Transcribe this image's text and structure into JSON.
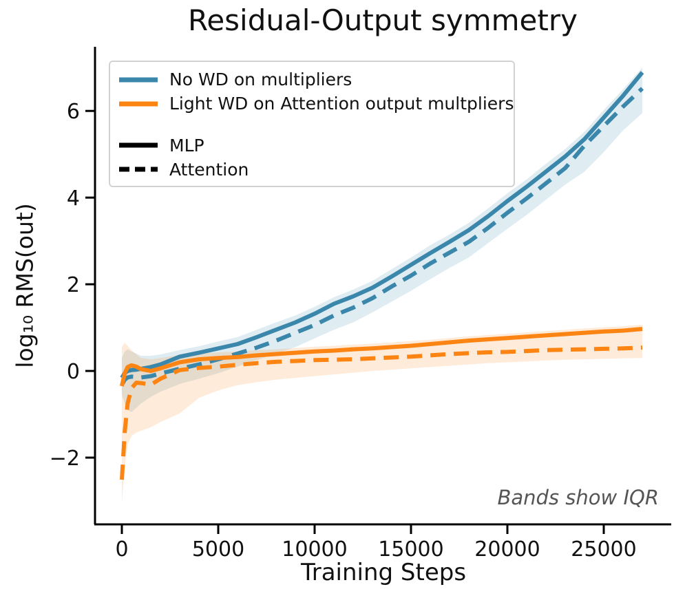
{
  "figure": {
    "annotation": "Bands show IQR"
  },
  "colors": {
    "blue": "#3a87ab",
    "orange": "#fc8412",
    "blue_band": "rgba(58,135,171,0.16)",
    "orange_band": "rgba(252,132,18,0.16)",
    "legend_border": "#d2d2d2",
    "annotation_gray": "#555555",
    "axis_black": "#000000"
  },
  "chart_data": {
    "type": "line",
    "title": "Residual-Output symmetry",
    "xlabel": "Training Steps",
    "ylabel": "log₁₀ RMS(out)",
    "xlim": [
      -1393,
      28500
    ],
    "ylim": [
      -3.54,
      7.48
    ],
    "xticks": [
      0,
      5000,
      10000,
      15000,
      20000,
      25000
    ],
    "xtick_labels": [
      "0",
      "5000",
      "10000",
      "15000",
      "20000",
      "25000"
    ],
    "yticks": [
      -2,
      0,
      2,
      4,
      6
    ],
    "ytick_labels": [
      "−2",
      "0",
      "2",
      "4",
      "6"
    ],
    "grid": false,
    "legend_position": "upper left",
    "annotation": "Bands show IQR",
    "x": [
      0,
      150,
      300,
      500,
      750,
      1000,
      1500,
      2000,
      3000,
      4000,
      5000,
      6000,
      7000,
      8000,
      9000,
      10000,
      11000,
      12000,
      13000,
      14000,
      15000,
      16000,
      17000,
      18000,
      19000,
      20000,
      21000,
      22000,
      23000,
      24000,
      25000,
      26000,
      27000
    ],
    "series": [
      {
        "condition": "No WD on multipliers",
        "component": "MLP",
        "color": "#3a87ab",
        "dash": false,
        "values": [
          -0.16,
          -0.05,
          0.0,
          0.02,
          0.03,
          0.05,
          0.09,
          0.15,
          0.33,
          0.42,
          0.52,
          0.62,
          0.78,
          0.95,
          1.12,
          1.32,
          1.55,
          1.72,
          1.92,
          2.18,
          2.45,
          2.72,
          2.98,
          3.25,
          3.57,
          3.92,
          4.25,
          4.6,
          4.95,
          5.35,
          5.85,
          6.35,
          6.89
        ]
      },
      {
        "condition": "No WD on multipliers",
        "component": "Attention",
        "color": "#3a87ab",
        "dash": true,
        "values": [
          -0.32,
          -0.2,
          -0.15,
          -0.13,
          -0.14,
          -0.15,
          -0.12,
          -0.06,
          0.05,
          0.15,
          0.27,
          0.4,
          0.54,
          0.7,
          0.88,
          1.06,
          1.28,
          1.46,
          1.68,
          1.95,
          2.2,
          2.48,
          2.73,
          2.98,
          3.3,
          3.65,
          3.98,
          4.33,
          4.68,
          5.2,
          5.65,
          6.1,
          6.52
        ]
      },
      {
        "condition": "Light WD on Attention output multpliers",
        "component": "MLP",
        "color": "#fc8412",
        "dash": false,
        "values": [
          -0.35,
          -0.05,
          0.09,
          0.13,
          0.1,
          0.04,
          0.0,
          0.06,
          0.2,
          0.27,
          0.3,
          0.32,
          0.36,
          0.39,
          0.42,
          0.45,
          0.47,
          0.5,
          0.52,
          0.55,
          0.58,
          0.62,
          0.66,
          0.7,
          0.73,
          0.76,
          0.79,
          0.82,
          0.85,
          0.88,
          0.91,
          0.93,
          0.97
        ]
      },
      {
        "condition": "Light WD on Attention output multpliers",
        "component": "Attention",
        "color": "#fc8412",
        "dash": true,
        "values": [
          -2.51,
          -1.4,
          -0.75,
          -0.4,
          -0.27,
          -0.28,
          -0.32,
          -0.18,
          0.02,
          0.07,
          0.1,
          0.14,
          0.18,
          0.21,
          0.23,
          0.25,
          0.26,
          0.27,
          0.29,
          0.31,
          0.33,
          0.36,
          0.39,
          0.41,
          0.43,
          0.44,
          0.46,
          0.48,
          0.49,
          0.5,
          0.51,
          0.52,
          0.54
        ]
      }
    ],
    "bands": [
      {
        "condition": "No WD on multipliers",
        "fill": "rgba(58,135,171,0.16)",
        "upper": [
          0.3,
          0.45,
          0.5,
          0.45,
          0.4,
          0.35,
          0.35,
          0.38,
          0.48,
          0.57,
          0.68,
          0.78,
          0.95,
          1.12,
          1.28,
          1.48,
          1.7,
          1.88,
          2.08,
          2.35,
          2.62,
          2.9,
          3.15,
          3.42,
          3.75,
          4.1,
          4.42,
          4.78,
          5.12,
          5.52,
          6.02,
          6.5,
          7.0
        ],
        "lower": [
          -0.55,
          -0.75,
          -0.9,
          -0.95,
          -0.85,
          -0.75,
          -0.6,
          -0.48,
          -0.3,
          -0.18,
          -0.05,
          0.1,
          0.25,
          0.4,
          0.55,
          0.75,
          0.95,
          1.12,
          1.35,
          1.6,
          1.85,
          2.12,
          2.38,
          2.62,
          2.95,
          3.28,
          3.6,
          3.95,
          4.3,
          4.6,
          5.05,
          5.55,
          5.95
        ]
      },
      {
        "condition": "Light WD on Attention output multpliers",
        "fill": "rgba(252,132,18,0.16)",
        "upper": [
          0.55,
          0.65,
          0.58,
          0.48,
          0.38,
          0.3,
          0.27,
          0.3,
          0.37,
          0.4,
          0.43,
          0.45,
          0.48,
          0.5,
          0.53,
          0.56,
          0.58,
          0.61,
          0.63,
          0.66,
          0.69,
          0.72,
          0.76,
          0.8,
          0.83,
          0.86,
          0.89,
          0.92,
          0.95,
          0.98,
          1.01,
          1.03,
          1.07
        ],
        "lower": [
          -3.05,
          -2.2,
          -1.7,
          -1.5,
          -1.42,
          -1.38,
          -1.3,
          -1.18,
          -0.98,
          -0.62,
          -0.45,
          -0.33,
          -0.26,
          -0.2,
          -0.16,
          -0.12,
          -0.08,
          -0.04,
          0.0,
          0.03,
          0.06,
          0.09,
          0.12,
          0.15,
          0.18,
          0.2,
          0.22,
          0.24,
          0.26,
          0.27,
          0.28,
          0.29,
          0.3
        ]
      }
    ],
    "legend": {
      "condition_entries": [
        {
          "label": "No WD on multipliers",
          "color": "#3a87ab",
          "dash": false
        },
        {
          "label": "Light WD on Attention output multpliers",
          "color": "#fc8412",
          "dash": false
        }
      ],
      "style_entries": [
        {
          "label": "MLP",
          "color": "#000000",
          "dash": false
        },
        {
          "label": "Attention",
          "color": "#000000",
          "dash": true
        }
      ]
    }
  }
}
